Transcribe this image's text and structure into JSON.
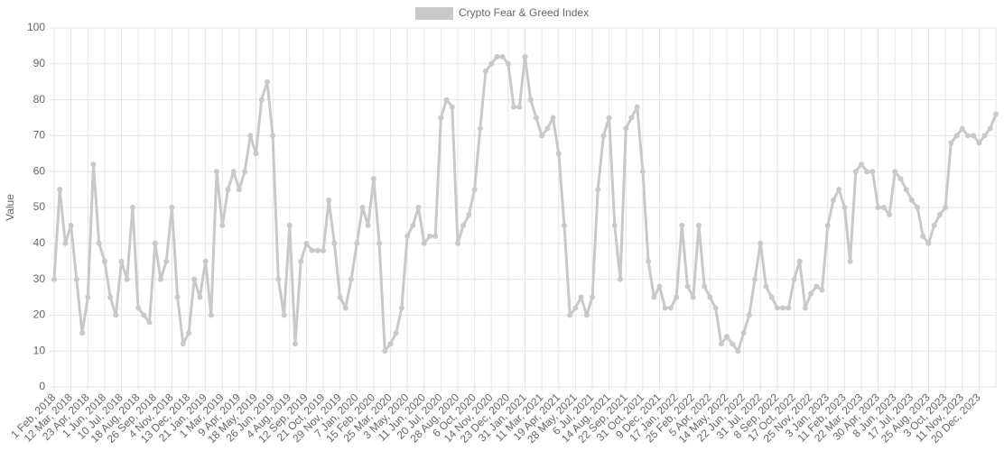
{
  "chart_data": {
    "type": "line",
    "y_label": "Value",
    "categories": [
      "1 Feb, 2018",
      null,
      null,
      "12 Mar, 2018",
      null,
      null,
      "23 Apr, 2018",
      null,
      null,
      "1 Jun, 2018",
      null,
      null,
      "10 Jul, 2018",
      null,
      null,
      "18 Aug, 2018",
      null,
      null,
      "26 Sep, 2018",
      null,
      null,
      "4 Nov, 2018",
      null,
      null,
      "13 Dec, 2018",
      null,
      null,
      "21 Jan, 2019",
      null,
      null,
      "1 Mar, 2019",
      null,
      null,
      "9 Apr, 2019",
      null,
      null,
      "18 May, 2019",
      null,
      null,
      "26 Jun, 2019",
      null,
      null,
      "4 Aug, 2019",
      null,
      null,
      "12 Sep, 2019",
      null,
      null,
      "21 Oct, 2019",
      null,
      null,
      "29 Nov, 2019",
      null,
      null,
      "7 Jan, 2020",
      null,
      null,
      "15 Feb, 2020",
      null,
      null,
      "25 Mar, 2020",
      null,
      null,
      "3 May, 2020",
      null,
      null,
      "11 Jun, 2020",
      null,
      null,
      "20 Jul, 2020",
      null,
      null,
      "28 Aug, 2020",
      null,
      null,
      "6 Oct, 2020",
      null,
      null,
      "14 Nov, 2020",
      null,
      null,
      "23 Dec, 2020",
      null,
      null,
      "31 Jan, 2021",
      null,
      null,
      "11 Mar, 2021",
      null,
      null,
      "19 Apr, 2021",
      null,
      null,
      "28 May, 2021",
      null,
      null,
      "6 Jul, 2021",
      null,
      null,
      "14 Aug, 2021",
      null,
      null,
      "22 Sep, 2021",
      null,
      null,
      "31 Oct, 2021",
      null,
      null,
      "9 Dec, 2021",
      null,
      null,
      "17 Jan, 2022",
      null,
      null,
      "25 Feb, 2022",
      null,
      null,
      "5 Apr, 2022",
      null,
      null,
      "14 May, 2022",
      null,
      null,
      "22 Jun, 2022",
      null,
      null,
      "31 Jul, 2022",
      null,
      null,
      "8 Sep, 2022",
      null,
      null,
      "17 Oct, 2022",
      null,
      null,
      "25 Nov, 2022",
      null,
      null,
      "3 Jan, 2023",
      null,
      null,
      "11 Feb, 2023",
      null,
      null,
      "22 Mar, 2023",
      null,
      null,
      "30 Apr, 2023",
      null,
      null,
      "8 Jun, 2023",
      null,
      null,
      "17 Jul, 2023",
      null,
      null,
      "25 Aug, 2023",
      null,
      null,
      "3 Oct, 2023",
      null,
      null,
      "11 Nov, 2023",
      null,
      null,
      "20 Dec, 2023",
      null,
      null,
      null
    ],
    "series": [
      {
        "name": "Crypto Fear & Greed Index",
        "color": "#c9c9c9",
        "values": [
          30,
          55,
          40,
          45,
          30,
          15,
          25,
          62,
          40,
          35,
          25,
          20,
          35,
          30,
          50,
          22,
          20,
          18,
          40,
          30,
          35,
          50,
          25,
          12,
          15,
          30,
          25,
          35,
          20,
          60,
          45,
          55,
          60,
          55,
          60,
          70,
          65,
          80,
          85,
          70,
          30,
          20,
          45,
          12,
          35,
          40,
          38,
          38,
          38,
          52,
          40,
          25,
          22,
          30,
          40,
          50,
          45,
          58,
          40,
          10,
          12,
          15,
          22,
          42,
          45,
          50,
          40,
          42,
          42,
          75,
          80,
          78,
          40,
          45,
          48,
          55,
          72,
          88,
          90,
          92,
          92,
          90,
          78,
          78,
          92,
          80,
          75,
          70,
          72,
          75,
          65,
          45,
          20,
          22,
          25,
          20,
          25,
          55,
          70,
          75,
          45,
          30,
          72,
          75,
          78,
          60,
          35,
          25,
          28,
          22,
          22,
          25,
          45,
          28,
          25,
          45,
          28,
          25,
          22,
          12,
          14,
          12,
          10,
          15,
          20,
          30,
          40,
          28,
          25,
          22,
          22,
          22,
          30,
          35,
          22,
          26,
          28,
          27,
          45,
          52,
          55,
          50,
          35,
          60,
          62,
          60,
          60,
          50,
          50,
          48,
          60,
          58,
          55,
          52,
          50,
          42,
          40,
          45,
          48,
          50,
          68,
          70,
          72,
          70,
          70,
          68,
          70,
          72,
          76
        ]
      }
    ],
    "ylim": [
      0,
      100
    ],
    "yticks": [
      0,
      10,
      20,
      30,
      40,
      50,
      60,
      70,
      80,
      90,
      100
    ],
    "grid": true,
    "legend": "top"
  }
}
